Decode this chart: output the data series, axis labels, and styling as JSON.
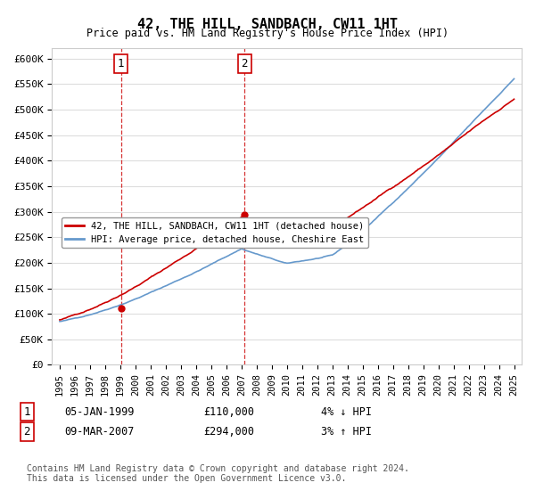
{
  "title": "42, THE HILL, SANDBACH, CW11 1HT",
  "subtitle": "Price paid vs. HM Land Registry's House Price Index (HPI)",
  "ylabel_vals": [
    "£0",
    "£50K",
    "£100K",
    "£150K",
    "£200K",
    "£250K",
    "£300K",
    "£350K",
    "£400K",
    "£450K",
    "£500K",
    "£550K",
    "£600K"
  ],
  "yticks": [
    0,
    50000,
    100000,
    150000,
    200000,
    250000,
    300000,
    350000,
    400000,
    450000,
    500000,
    550000,
    600000
  ],
  "ylim": [
    0,
    620000
  ],
  "sale1_date_idx": 4.05,
  "sale1_value": 110000,
  "sale1_label": "1",
  "sale1_date_str": "05-JAN-1999",
  "sale1_price_str": "£110,000",
  "sale1_hpi_str": "4% ↓ HPI",
  "sale2_date_idx": 12.25,
  "sale2_value": 294000,
  "sale2_label": "2",
  "sale2_date_str": "09-MAR-2007",
  "sale2_price_str": "£294,000",
  "sale2_hpi_str": "3% ↑ HPI",
  "legend_line1": "42, THE HILL, SANDBACH, CW11 1HT (detached house)",
  "legend_line2": "HPI: Average price, detached house, Cheshire East",
  "footer": "Contains HM Land Registry data © Crown copyright and database right 2024.\nThis data is licensed under the Open Government Licence v3.0.",
  "line_color_red": "#cc0000",
  "line_color_blue": "#6699cc",
  "vline_color": "#cc0000",
  "background_color": "#ffffff",
  "grid_color": "#dddddd",
  "xtick_labels": [
    "1995",
    "1996",
    "1997",
    "1998",
    "1999",
    "2000",
    "2001",
    "2002",
    "2003",
    "2004",
    "2005",
    "2006",
    "2007",
    "2008",
    "2009",
    "2010",
    "2011",
    "2012",
    "2013",
    "2014",
    "2015",
    "2016",
    "2017",
    "2018",
    "2019",
    "2020",
    "2021",
    "2022",
    "2023",
    "2024",
    "2025"
  ]
}
